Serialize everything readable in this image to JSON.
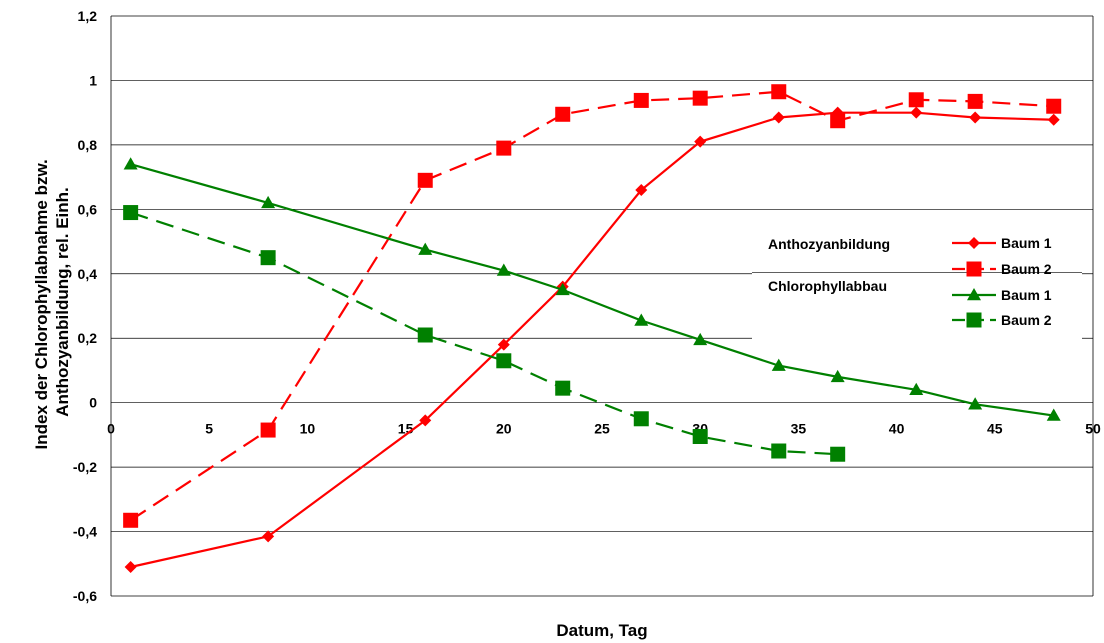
{
  "chart_data": {
    "type": "line",
    "title": "",
    "xlabel": "Datum, Tag",
    "ylabel_lines": [
      "Index der Chlorophyllabnahme bzw.",
      "Anthozyanbildung, rel. Einh."
    ],
    "xlim": [
      0,
      50
    ],
    "ylim": [
      -0.6,
      1.2
    ],
    "x_ticks": [
      {
        "value": 0,
        "label": "0"
      },
      {
        "value": 5,
        "label": "5"
      },
      {
        "value": 10,
        "label": "10"
      },
      {
        "value": 15,
        "label": "15"
      },
      {
        "value": 20,
        "label": "20"
      },
      {
        "value": 25,
        "label": "25"
      },
      {
        "value": 30,
        "label": "30"
      },
      {
        "value": 35,
        "label": "35"
      },
      {
        "value": 40,
        "label": "40"
      },
      {
        "value": 45,
        "label": "45"
      },
      {
        "value": 50,
        "label": "50"
      }
    ],
    "y_ticks": [
      {
        "value": 1.2,
        "label": "1,2"
      },
      {
        "value": 1.0,
        "label": "1"
      },
      {
        "value": 0.8,
        "label": "0,8"
      },
      {
        "value": 0.6,
        "label": "0,6"
      },
      {
        "value": 0.4,
        "label": "0,4"
      },
      {
        "value": 0.2,
        "label": "0,2"
      },
      {
        "value": 0.0,
        "label": "0"
      },
      {
        "value": -0.2,
        "label": "-0,2"
      },
      {
        "value": -0.4,
        "label": "-0,4"
      },
      {
        "value": -0.6,
        "label": "-0,6"
      }
    ],
    "grid": "horizontal",
    "legend_groups": [
      {
        "label": "Anthozyanbildung",
        "series": [
          "anth-baum1",
          "anth-baum2"
        ]
      },
      {
        "label": "Chlorophyllabbau",
        "series": [
          "chl-baum1",
          "chl-baum2"
        ]
      }
    ],
    "series": [
      {
        "id": "anth-baum1",
        "name": "Baum 1",
        "color": "#ff0000",
        "marker": "diamond",
        "dashed": false,
        "points": [
          [
            1,
            -0.51
          ],
          [
            8,
            -0.415
          ],
          [
            16,
            -0.055
          ],
          [
            20,
            0.18
          ],
          [
            23,
            0.36
          ],
          [
            27,
            0.66
          ],
          [
            30,
            0.81
          ],
          [
            34,
            0.885
          ],
          [
            37,
            0.9
          ],
          [
            41,
            0.9
          ],
          [
            44,
            0.885
          ],
          [
            48,
            0.878
          ]
        ]
      },
      {
        "id": "anth-baum2",
        "name": "Baum 2",
        "color": "#ff0000",
        "marker": "square",
        "dashed": true,
        "points": [
          [
            1,
            -0.365
          ],
          [
            8,
            -0.085
          ],
          [
            16,
            0.69
          ],
          [
            20,
            0.79
          ],
          [
            23,
            0.895
          ],
          [
            27,
            0.938
          ],
          [
            30,
            0.945
          ],
          [
            34,
            0.965
          ],
          [
            37,
            0.875
          ],
          [
            41,
            0.94
          ],
          [
            44,
            0.935
          ],
          [
            48,
            0.92
          ]
        ]
      },
      {
        "id": "chl-baum1",
        "name": "Baum 1",
        "color": "#008000",
        "marker": "triangle",
        "dashed": false,
        "points": [
          [
            1,
            0.74
          ],
          [
            8,
            0.62
          ],
          [
            16,
            0.475
          ],
          [
            20,
            0.41
          ],
          [
            23,
            0.35
          ],
          [
            27,
            0.255
          ],
          [
            30,
            0.195
          ],
          [
            34,
            0.115
          ],
          [
            37,
            0.08
          ],
          [
            41,
            0.04
          ],
          [
            44,
            -0.005
          ],
          [
            48,
            -0.04
          ]
        ]
      },
      {
        "id": "chl-baum2",
        "name": "Baum 2",
        "color": "#008000",
        "marker": "square",
        "dashed": true,
        "points": [
          [
            1,
            0.59
          ],
          [
            8,
            0.45
          ],
          [
            16,
            0.21
          ],
          [
            20,
            0.13
          ],
          [
            23,
            0.045
          ],
          [
            27,
            -0.05
          ],
          [
            30,
            -0.105
          ],
          [
            34,
            -0.15
          ],
          [
            37,
            -0.16
          ]
        ]
      }
    ]
  }
}
